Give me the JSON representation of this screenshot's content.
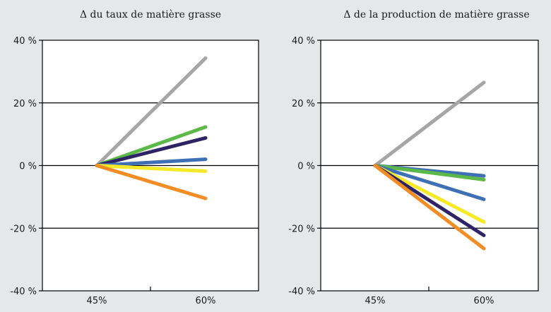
{
  "chart_data": [
    {
      "type": "line",
      "title": "Δ du taux de matière grasse",
      "categories": [
        "45%",
        "60%"
      ],
      "ylim": [
        -40,
        40
      ],
      "yticks": [
        40,
        20,
        0,
        -20,
        -40
      ],
      "ytick_labels": [
        "40 %",
        "20 %",
        "0 %",
        "-20 %",
        "-40 %"
      ],
      "grid": "horizontal",
      "series": [
        {
          "color": "#a6a6a6",
          "values": [
            0,
            34.3
          ]
        },
        {
          "color": "#5cb848",
          "values": [
            0,
            12.3
          ]
        },
        {
          "color": "#2e2465",
          "values": [
            0,
            8.8
          ]
        },
        {
          "color": "#3f6fb5",
          "values": [
            0,
            2.0
          ]
        },
        {
          "color": "#f5ea2a",
          "values": [
            0,
            -1.8
          ]
        },
        {
          "color": "#f28c25",
          "values": [
            0,
            -10.5
          ]
        }
      ]
    },
    {
      "type": "line",
      "title": "Δ de la production de matière grasse",
      "categories": [
        "45%",
        "60%"
      ],
      "ylim": [
        -40,
        40
      ],
      "yticks": [
        40,
        20,
        0,
        -20,
        -40
      ],
      "ytick_labels": [
        "40 %",
        "20 %",
        "0 %",
        "-20 %",
        "-40 %"
      ],
      "grid": "horizontal",
      "series": [
        {
          "color": "#a6a6a6",
          "values": [
            0,
            26.5
          ]
        },
        {
          "color": "#3f6fb5",
          "values": [
            0,
            -3.3
          ]
        },
        {
          "color": "#5cb848",
          "values": [
            0,
            -4.5
          ]
        },
        {
          "color": "#3f6fb5",
          "values": [
            0,
            -10.8
          ]
        },
        {
          "color": "#f5ea2a",
          "values": [
            0,
            -18.0
          ]
        },
        {
          "color": "#2e2465",
          "values": [
            0,
            -22.3
          ]
        },
        {
          "color": "#f28c25",
          "values": [
            0,
            -26.5
          ]
        }
      ]
    }
  ]
}
